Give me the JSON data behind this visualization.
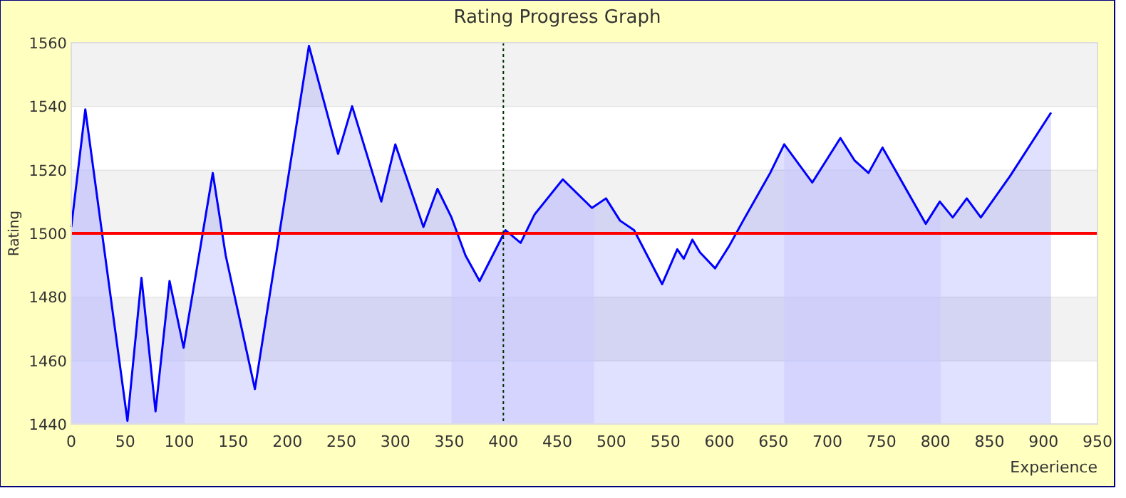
{
  "chart_data": {
    "type": "area",
    "title": "Rating Progress Graph",
    "xlabel": "Experience",
    "ylabel": "Rating",
    "x": [
      0,
      13,
      52,
      65,
      78,
      91,
      104,
      131,
      143,
      170,
      220,
      247,
      260,
      287,
      300,
      326,
      339,
      352,
      365,
      378,
      402,
      416,
      429,
      455,
      482,
      495,
      508,
      521,
      547,
      561,
      567,
      575,
      582,
      596,
      609,
      622,
      647,
      660,
      686,
      712,
      725,
      738,
      751,
      791,
      804,
      816,
      829,
      842,
      869,
      907
    ],
    "series": [
      {
        "color": "#0000ff",
        "values": [
          1502,
          1539,
          1441,
          1486,
          1444,
          1485,
          1464,
          1519,
          1493,
          1451,
          1559,
          1525,
          1540,
          1510,
          1528,
          1502,
          1514,
          1505,
          1493,
          1485,
          1501,
          1497,
          1506,
          1517,
          1508,
          1511,
          1504,
          1501,
          1484,
          1495,
          1492,
          1498,
          1494,
          1489,
          1496,
          1504,
          1519,
          1528,
          1516,
          1530,
          1523,
          1519,
          1527,
          1503,
          1510,
          1505,
          1511,
          1505,
          1518,
          1538
        ]
      }
    ],
    "xlim": [
      0,
      950
    ],
    "ylim": [
      1440,
      1560
    ],
    "xticks": [
      0,
      50,
      100,
      150,
      200,
      250,
      300,
      350,
      400,
      450,
      500,
      550,
      600,
      650,
      700,
      750,
      800,
      850,
      900,
      950
    ],
    "yticks": [
      1440,
      1460,
      1480,
      1500,
      1520,
      1540,
      1560
    ],
    "grid": "y",
    "marker": "none",
    "line_style": "solid",
    "ref_lines": [
      {
        "axis": "y",
        "value": 1500,
        "color": "#ff0000",
        "line_style": "solid"
      },
      {
        "axis": "x",
        "value": 400,
        "color": "#003300",
        "line_style": "dotted"
      }
    ],
    "bands": [
      {
        "axis": "x",
        "from": 0,
        "to": 105,
        "color": "#ccccff"
      },
      {
        "axis": "x",
        "from": 352,
        "to": 484,
        "color": "#ccccff"
      },
      {
        "axis": "x",
        "from": 660,
        "to": 805,
        "color": "#ccccff"
      }
    ]
  }
}
